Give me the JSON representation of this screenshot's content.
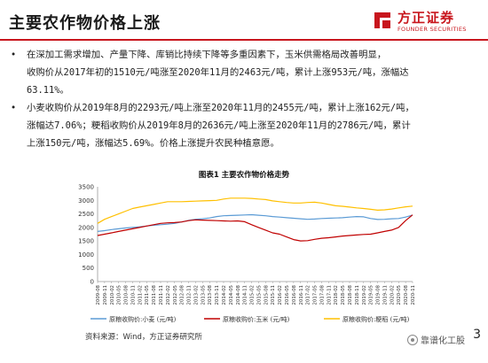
{
  "slide": {
    "title": "主要农作物价格上涨",
    "page_number": "3"
  },
  "logo": {
    "cn": "方正证券",
    "en": "FOUNDER SECURITIES",
    "color": "#c8161d"
  },
  "bullets": [
    {
      "lines": [
        "在深加工需求增加、产量下降、库销比持续下降等多重因素下，玉米供需格局改善明显，",
        "收购价从2017年初的1510元/吨涨至2020年11月的2463元/吨，累计上涨953元/吨，涨幅达",
        "63.11%。"
      ]
    },
    {
      "lines": [
        "小麦收购价从2019年8月的2293元/吨上涨至2020年11月的2455元/吨，累计上涨162元/吨，",
        "涨幅达7.06%；粳稻收购价从2019年8月的2636元/吨上涨至2020年11月的2786元/吨，累计",
        "上涨150元/吨，涨幅达5.69%。价格上涨提升农民种植意愿。"
      ]
    }
  ],
  "figure": {
    "title": "图表1 主要农作物价格走势",
    "source": "资料来源：Wind，方正证券研究所"
  },
  "watermark": {
    "text": "靠谱化工股",
    "icon": "wechat-official-account-icon"
  },
  "chart_data": {
    "type": "line",
    "title": "图表1 主要农作物价格走势",
    "ylim": [
      0,
      3500
    ],
    "yticks": [
      0,
      500,
      1000,
      1500,
      2000,
      2500,
      3000,
      3500
    ],
    "grid": false,
    "legend_position": "bottom",
    "x_tick_labels": [
      "2009-08",
      "2009-11",
      "2010-02",
      "2010-05",
      "2010-08",
      "2010-11",
      "2011-02",
      "2011-05",
      "2011-08",
      "2011-11",
      "2012-02",
      "2012-05",
      "2012-08",
      "2012-11",
      "2013-02",
      "2013-05",
      "2013-08",
      "2013-11",
      "2014-02",
      "2014-05",
      "2014-08",
      "2014-11",
      "2015-02",
      "2015-05",
      "2015-08",
      "2015-11",
      "2016-02",
      "2016-05",
      "2016-08",
      "2016-11",
      "2017-02",
      "2017-05",
      "2017-08",
      "2017-11",
      "2018-02",
      "2018-05",
      "2018-08",
      "2018-11",
      "2019-02",
      "2019-05",
      "2019-08",
      "2019-11",
      "2020-02",
      "2020-05",
      "2020-08",
      "2020-11"
    ],
    "series": [
      {
        "name": "原粮收购价:小麦 (元/吨)",
        "color": "#5b9bd5",
        "values": [
          1850,
          1880,
          1920,
          1950,
          1980,
          2000,
          2020,
          2050,
          2080,
          2100,
          2120,
          2150,
          2200,
          2260,
          2300,
          2320,
          2350,
          2400,
          2430,
          2440,
          2450,
          2460,
          2470,
          2450,
          2430,
          2400,
          2380,
          2360,
          2340,
          2320,
          2300,
          2310,
          2330,
          2340,
          2350,
          2360,
          2380,
          2400,
          2390,
          2330,
          2293,
          2300,
          2320,
          2330,
          2380,
          2455
        ]
      },
      {
        "name": "原粮收购价:玉米 (元/吨)",
        "color": "#c00000",
        "values": [
          1700,
          1750,
          1800,
          1850,
          1900,
          1950,
          2000,
          2050,
          2100,
          2150,
          2170,
          2180,
          2200,
          2250,
          2280,
          2270,
          2260,
          2250,
          2240,
          2230,
          2240,
          2210,
          2100,
          2000,
          1900,
          1800,
          1750,
          1650,
          1550,
          1500,
          1510,
          1560,
          1600,
          1620,
          1650,
          1680,
          1700,
          1720,
          1740,
          1750,
          1800,
          1850,
          1900,
          2000,
          2250,
          2463
        ]
      },
      {
        "name": "原粮收购价:粳稻 (元/吨)",
        "color": "#ffc000",
        "values": [
          2150,
          2300,
          2400,
          2500,
          2600,
          2700,
          2750,
          2800,
          2850,
          2900,
          2950,
          2950,
          2950,
          2960,
          2970,
          2980,
          2990,
          3000,
          3050,
          3080,
          3080,
          3080,
          3070,
          3050,
          3030,
          2980,
          2950,
          2920,
          2900,
          2900,
          2920,
          2930,
          2900,
          2850,
          2800,
          2780,
          2750,
          2720,
          2700,
          2670,
          2636,
          2650,
          2680,
          2720,
          2760,
          2786
        ]
      }
    ]
  }
}
